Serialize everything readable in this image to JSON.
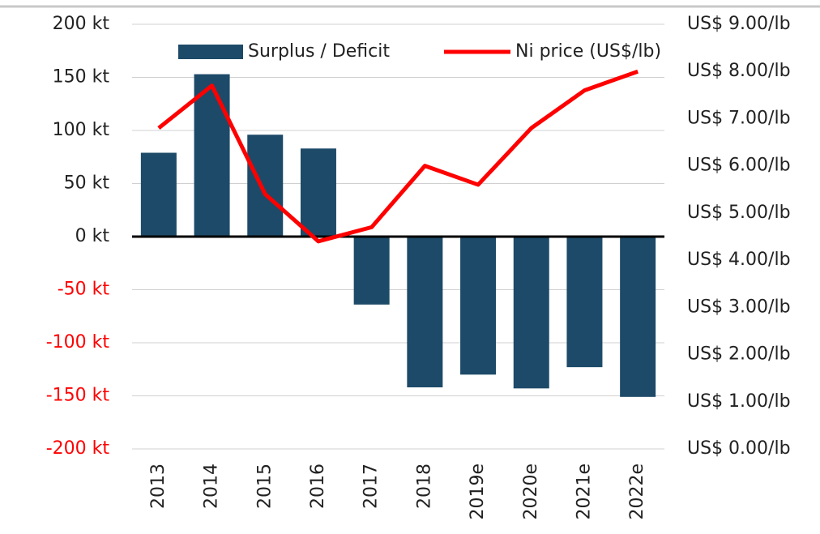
{
  "chart_data": {
    "type": "bar-line",
    "categories": [
      "2013",
      "2014",
      "2015",
      "2016",
      "2017",
      "2018",
      "2019e",
      "2020e",
      "2021e",
      "2022e"
    ],
    "series": [
      {
        "name": "Surplus / Deficit",
        "type": "bar",
        "color": "#1d4a68",
        "values": [
          79,
          153,
          96,
          83,
          -64,
          -142,
          -130,
          -143,
          -123,
          -151
        ]
      },
      {
        "name": "Ni price (US$/lb)",
        "type": "line",
        "axis": "y2",
        "color": "#ff0000",
        "values": [
          6.8,
          7.7,
          5.4,
          4.4,
          4.7,
          6.0,
          5.6,
          6.8,
          7.6,
          8.0
        ]
      }
    ],
    "ylim": [
      -200,
      200
    ],
    "yticks": [
      {
        "value": 200,
        "label": "200 kt"
      },
      {
        "value": 150,
        "label": "150 kt"
      },
      {
        "value": 100,
        "label": "100 kt"
      },
      {
        "value": 50,
        "label": "50 kt"
      },
      {
        "value": 0,
        "label": "0 kt"
      },
      {
        "value": -50,
        "label": "-50 kt"
      },
      {
        "value": -100,
        "label": "-100 kt"
      },
      {
        "value": -150,
        "label": "-150 kt"
      },
      {
        "value": -200,
        "label": "-200 kt"
      }
    ],
    "y2lim": [
      0,
      9
    ],
    "y2ticks": [
      {
        "value": 9,
        "label": "US$ 9.00/lb"
      },
      {
        "value": 8,
        "label": "US$ 8.00/lb"
      },
      {
        "value": 7,
        "label": "US$ 7.00/lb"
      },
      {
        "value": 6,
        "label": "US$ 6.00/lb"
      },
      {
        "value": 5,
        "label": "US$ 5.00/lb"
      },
      {
        "value": 4,
        "label": "US$ 4.00/lb"
      },
      {
        "value": 3,
        "label": "US$ 3.00/lb"
      },
      {
        "value": 2,
        "label": "US$ 2.00/lb"
      },
      {
        "value": 1,
        "label": "US$ 1.00/lb"
      },
      {
        "value": 0,
        "label": "US$ 0.00/lb"
      }
    ],
    "grid": true,
    "negative_tick_color": "#ff0000"
  }
}
